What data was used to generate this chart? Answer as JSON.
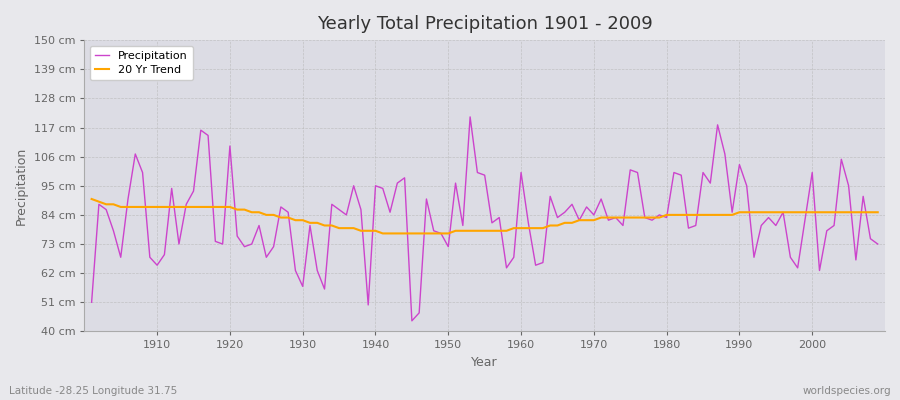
{
  "title": "Yearly Total Precipitation 1901 - 2009",
  "xlabel": "Year",
  "ylabel": "Precipitation",
  "footnote_left": "Latitude -28.25 Longitude 31.75",
  "footnote_right": "worldspecies.org",
  "line_color": "#CC44CC",
  "trend_color": "#FFA500",
  "bg_color": "#E8E8EC",
  "plot_bg_color": "#DCDCE4",
  "ylim": [
    40,
    150
  ],
  "yticks": [
    40,
    51,
    62,
    73,
    84,
    95,
    106,
    117,
    128,
    139,
    150
  ],
  "years": [
    1901,
    1902,
    1903,
    1904,
    1905,
    1906,
    1907,
    1908,
    1909,
    1910,
    1911,
    1912,
    1913,
    1914,
    1915,
    1916,
    1917,
    1918,
    1919,
    1920,
    1921,
    1922,
    1923,
    1924,
    1925,
    1926,
    1927,
    1928,
    1929,
    1930,
    1931,
    1932,
    1933,
    1934,
    1935,
    1936,
    1937,
    1938,
    1939,
    1940,
    1941,
    1942,
    1943,
    1944,
    1945,
    1946,
    1947,
    1948,
    1949,
    1950,
    1951,
    1952,
    1953,
    1954,
    1955,
    1956,
    1957,
    1958,
    1959,
    1960,
    1961,
    1962,
    1963,
    1964,
    1965,
    1966,
    1967,
    1968,
    1969,
    1970,
    1971,
    1972,
    1973,
    1974,
    1975,
    1976,
    1977,
    1978,
    1979,
    1980,
    1981,
    1982,
    1983,
    1984,
    1985,
    1986,
    1987,
    1988,
    1989,
    1990,
    1991,
    1992,
    1993,
    1994,
    1995,
    1996,
    1997,
    1998,
    1999,
    2000,
    2001,
    2002,
    2003,
    2004,
    2005,
    2006,
    2007,
    2008,
    2009
  ],
  "precip": [
    51,
    88,
    86,
    78,
    68,
    90,
    107,
    100,
    68,
    65,
    69,
    94,
    73,
    88,
    93,
    116,
    114,
    74,
    73,
    110,
    76,
    72,
    73,
    80,
    68,
    72,
    87,
    85,
    63,
    57,
    80,
    63,
    56,
    88,
    86,
    84,
    95,
    86,
    50,
    95,
    94,
    85,
    96,
    98,
    44,
    47,
    90,
    78,
    77,
    72,
    96,
    80,
    121,
    100,
    99,
    81,
    83,
    64,
    68,
    100,
    81,
    65,
    66,
    91,
    83,
    85,
    88,
    82,
    87,
    84,
    90,
    82,
    83,
    80,
    101,
    100,
    83,
    82,
    84,
    83,
    100,
    99,
    79,
    80,
    100,
    96,
    118,
    107,
    85,
    103,
    95,
    68,
    80,
    83,
    80,
    85,
    68,
    64,
    82,
    100,
    63,
    78,
    80,
    105,
    95,
    67,
    91,
    75,
    73
  ],
  "trend": [
    90,
    89,
    88,
    88,
    87,
    87,
    87,
    87,
    87,
    87,
    87,
    87,
    87,
    87,
    87,
    87,
    87,
    87,
    87,
    87,
    86,
    86,
    85,
    85,
    84,
    84,
    83,
    83,
    82,
    82,
    81,
    81,
    80,
    80,
    79,
    79,
    79,
    78,
    78,
    78,
    77,
    77,
    77,
    77,
    77,
    77,
    77,
    77,
    77,
    77,
    78,
    78,
    78,
    78,
    78,
    78,
    78,
    78,
    79,
    79,
    79,
    79,
    79,
    80,
    80,
    81,
    81,
    82,
    82,
    82,
    83,
    83,
    83,
    83,
    83,
    83,
    83,
    83,
    83,
    84,
    84,
    84,
    84,
    84,
    84,
    84,
    84,
    84,
    84,
    85,
    85,
    85,
    85,
    85,
    85,
    85,
    85,
    85,
    85,
    85,
    85,
    85,
    85,
    85,
    85,
    85,
    85,
    85,
    85
  ]
}
